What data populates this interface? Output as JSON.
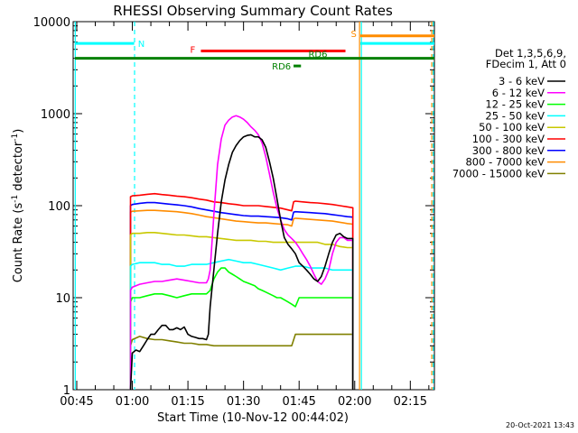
{
  "chart_data": {
    "type": "line",
    "title": "RHESSI Observing Summary Count Rates",
    "xlabel": "Start Time (10-Nov-12 00:44:02)",
    "ylabel_main": "Count Rate (s",
    "ylabel_sup1": "-1",
    "ylabel_mid": " detector",
    "ylabel_sup2": "-1",
    "ylabel_end": ")",
    "x_scale": "time",
    "x_range_min": [
      44.03,
      141.5
    ],
    "y_scale": "log",
    "ylim": [
      1,
      10000
    ],
    "x_ticks": [
      {
        "label": "00:45",
        "m": 45
      },
      {
        "label": "01:00",
        "m": 60
      },
      {
        "label": "01:15",
        "m": 75
      },
      {
        "label": "01:30",
        "m": 90
      },
      {
        "label": "01:45",
        "m": 105
      },
      {
        "label": "02:00",
        "m": 120
      },
      {
        "label": "02:15",
        "m": 135
      }
    ],
    "y_ticks": [
      {
        "label": "1",
        "v": 1
      },
      {
        "label": "10",
        "v": 10
      },
      {
        "label": "100",
        "v": 100
      },
      {
        "label": "1000",
        "v": 1000
      },
      {
        "label": "10000",
        "v": 10000
      }
    ],
    "legend_header": [
      "Det 1,3,5,6,9,",
      "FDecim 1, Att 0"
    ],
    "legend_position": "right",
    "series": [
      {
        "name": "3 - 6 keV",
        "color": "#000000",
        "x": [
          59.5,
          60,
          61,
          62,
          63,
          64,
          65,
          66,
          67,
          68,
          69,
          70,
          71,
          72,
          73,
          74,
          75,
          76,
          77,
          78,
          79,
          80,
          80.5,
          81,
          82,
          83,
          84,
          85,
          86,
          87,
          88,
          89,
          90,
          91,
          92,
          93,
          94,
          95,
          96,
          97,
          98,
          99,
          100,
          101,
          102,
          103,
          104,
          105,
          106,
          107,
          108,
          109,
          110,
          111,
          112,
          113,
          114,
          115,
          116,
          117,
          118,
          119.5
        ],
        "y": [
          1,
          2.5,
          2.7,
          2.6,
          3,
          3.5,
          4,
          4,
          4.5,
          5,
          5,
          4.5,
          4.5,
          4.7,
          4.5,
          4.8,
          4,
          3.8,
          3.7,
          3.6,
          3.6,
          3.5,
          4,
          8,
          20,
          50,
          110,
          190,
          280,
          380,
          450,
          510,
          560,
          580,
          590,
          560,
          560,
          520,
          430,
          300,
          200,
          120,
          70,
          45,
          38,
          34,
          30,
          24,
          22,
          20,
          18,
          16,
          15,
          17,
          22,
          30,
          40,
          48,
          50,
          46,
          44,
          44
        ]
      },
      {
        "name": "6 - 12 keV",
        "color": "#ff00ff",
        "x": [
          59.5,
          60,
          62,
          64,
          66,
          68,
          70,
          72,
          74,
          76,
          78,
          80,
          80.5,
          81,
          82,
          83,
          84,
          85,
          86,
          87,
          88,
          89,
          90,
          91,
          92,
          93,
          94,
          95,
          96,
          97,
          98,
          99,
          100,
          101,
          102,
          103,
          104,
          105,
          106,
          107,
          108,
          109,
          110,
          111,
          112,
          113,
          114,
          115,
          116,
          117,
          118,
          119.5
        ],
        "y": [
          12,
          13,
          14,
          14.5,
          15,
          15,
          15.5,
          16,
          15.5,
          15,
          14.5,
          14.5,
          16,
          20,
          80,
          280,
          530,
          750,
          850,
          920,
          950,
          920,
          870,
          800,
          720,
          660,
          590,
          480,
          340,
          220,
          140,
          95,
          70,
          55,
          48,
          44,
          40,
          35,
          30,
          26,
          22,
          18,
          15,
          14,
          16,
          20,
          30,
          40,
          45,
          45,
          42,
          42
        ]
      },
      {
        "name": "12 - 25 keV",
        "color": "#00ff00",
        "x": [
          59.5,
          60,
          62,
          64,
          66,
          68,
          70,
          72,
          74,
          76,
          78,
          80,
          81,
          82,
          83,
          84,
          85,
          86,
          87,
          88,
          89,
          90,
          91,
          92,
          93,
          94,
          95,
          96,
          97,
          98,
          99,
          100,
          101,
          102,
          103,
          104,
          105,
          106,
          107,
          108,
          109,
          110,
          111,
          112,
          113,
          114,
          115,
          116,
          117,
          118,
          119.5
        ],
        "y": [
          9,
          10,
          10,
          10.5,
          11,
          11,
          10.5,
          10,
          10.5,
          11,
          11,
          11,
          12,
          16,
          19,
          21,
          21,
          19,
          18,
          17,
          16,
          15,
          14.5,
          14,
          13.5,
          12.5,
          12,
          11.5,
          11,
          10.5,
          10,
          10,
          9.5,
          9,
          8.5,
          8,
          10,
          10,
          10,
          10,
          10,
          10,
          10,
          10,
          10,
          10,
          10,
          10,
          10,
          10,
          10
        ]
      },
      {
        "name": "25 - 50 keV",
        "color": "#00ffff",
        "x": [
          59.5,
          60,
          62,
          64,
          66,
          68,
          70,
          72,
          74,
          76,
          78,
          80,
          82,
          84,
          86,
          88,
          90,
          92,
          94,
          96,
          98,
          100,
          102,
          104,
          106,
          108,
          110,
          112,
          114,
          116,
          118,
          119.5
        ],
        "y": [
          22,
          23,
          24,
          24,
          24,
          23,
          23,
          22,
          22,
          23,
          23,
          23,
          24,
          25,
          26,
          25,
          24,
          24,
          23,
          22,
          21,
          20,
          21,
          22,
          22,
          21,
          21,
          21,
          20,
          20,
          20,
          20
        ]
      },
      {
        "name": "50 - 100 keV",
        "color": "#c8c800",
        "x": [
          59.5,
          60,
          62,
          64,
          66,
          68,
          70,
          72,
          74,
          76,
          78,
          80,
          82,
          84,
          86,
          88,
          90,
          92,
          94,
          96,
          98,
          100,
          102,
          103,
          104,
          106,
          108,
          110,
          112,
          114,
          116,
          118,
          119.5
        ],
        "y": [
          48,
          50,
          50,
          51,
          51,
          50,
          49,
          48,
          48,
          47,
          46,
          46,
          45,
          44,
          43,
          42,
          42,
          42,
          41,
          41,
          40,
          40,
          40,
          40,
          40,
          40,
          40,
          40,
          38,
          38,
          36,
          35,
          35
        ]
      },
      {
        "name": "100 - 300 keV",
        "color": "#ff0000",
        "x": [
          59.5,
          60,
          62,
          64,
          66,
          68,
          70,
          72,
          74,
          76,
          78,
          80,
          82,
          84,
          86,
          88,
          90,
          92,
          94,
          96,
          98,
          100,
          102,
          103,
          103.5,
          104,
          106,
          108,
          110,
          112,
          114,
          116,
          118,
          119.5
        ],
        "y": [
          125,
          128,
          130,
          133,
          135,
          132,
          130,
          127,
          125,
          122,
          118,
          115,
          110,
          108,
          105,
          103,
          100,
          100,
          100,
          98,
          96,
          94,
          90,
          88,
          110,
          112,
          110,
          108,
          107,
          105,
          103,
          100,
          97,
          95
        ]
      },
      {
        "name": "300 - 800 keV",
        "color": "#0000ff",
        "x": [
          59.5,
          60,
          62,
          64,
          66,
          68,
          70,
          72,
          74,
          76,
          78,
          80,
          82,
          84,
          86,
          88,
          90,
          92,
          94,
          96,
          98,
          100,
          102,
          103,
          103.5,
          104,
          106,
          108,
          110,
          112,
          114,
          116,
          118,
          119.5
        ],
        "y": [
          100,
          103,
          106,
          108,
          108,
          106,
          104,
          102,
          100,
          97,
          93,
          90,
          87,
          84,
          82,
          80,
          78,
          77,
          77,
          76,
          75,
          74,
          72,
          70,
          85,
          86,
          85,
          84,
          83,
          82,
          80,
          78,
          76,
          75
        ]
      },
      {
        "name": "800 - 7000 keV",
        "color": "#ff8c00",
        "x": [
          59.5,
          60,
          62,
          64,
          66,
          68,
          70,
          72,
          74,
          76,
          78,
          80,
          82,
          84,
          86,
          88,
          90,
          92,
          94,
          96,
          98,
          100,
          102,
          103,
          103.5,
          104,
          106,
          108,
          110,
          112,
          114,
          116,
          118,
          119.5
        ],
        "y": [
          85,
          87,
          88,
          89,
          89,
          88,
          87,
          86,
          84,
          82,
          79,
          76,
          74,
          72,
          70,
          68,
          67,
          66,
          65,
          65,
          64,
          63,
          62,
          60,
          72,
          73,
          72,
          71,
          70,
          69,
          68,
          66,
          64,
          63
        ]
      },
      {
        "name": "7000 - 15000 keV",
        "color": "#808000",
        "x": [
          59.5,
          60,
          62,
          64,
          66,
          68,
          70,
          72,
          74,
          76,
          78,
          80,
          82,
          84,
          86,
          88,
          90,
          92,
          94,
          96,
          98,
          100,
          102,
          103,
          104,
          106,
          108,
          110,
          112,
          114,
          116,
          118,
          119.5
        ],
        "y": [
          3,
          3.5,
          3.8,
          3.6,
          3.5,
          3.5,
          3.4,
          3.3,
          3.2,
          3.2,
          3.1,
          3.1,
          3.0,
          3.0,
          3.0,
          3.0,
          3.0,
          3.0,
          3.0,
          3.0,
          3.0,
          3.0,
          3.0,
          3.0,
          4.0,
          4.0,
          4.0,
          4.0,
          4.0,
          4.0,
          4.0,
          4.0,
          4.0
        ]
      }
    ],
    "flag_bars": [
      {
        "name": "N",
        "label": "N",
        "color": "#00ffff",
        "m_start": 44.5,
        "m_end": 60.5,
        "v": 5800
      },
      {
        "name": "F",
        "label": "F",
        "color": "#ff0000",
        "m_start": 78.5,
        "m_end": 117.5,
        "v": 4800
      },
      {
        "name": "RD",
        "label": "RD6",
        "color": "#008000",
        "m_start": 44.5,
        "m_end": 141.5,
        "v": 4000
      },
      {
        "name": "RD6",
        "label": "RD6",
        "color": "#008000",
        "m_start": 103.5,
        "m_end": 105.5,
        "v": 3300
      },
      {
        "name": "S",
        "label": "S",
        "color": "#ff8c00",
        "m_start": 121.5,
        "m_end": 141.5,
        "v": 7000
      },
      {
        "name": "N2",
        "label": "",
        "color": "#00ffff",
        "m_start": 121.5,
        "m_end": 141.5,
        "v": 5800
      }
    ],
    "vertical_markers": [
      {
        "m": 44.6,
        "color": "#00ffff",
        "style": "solid"
      },
      {
        "m": 60.6,
        "color": "#00ffff",
        "style": "dashed"
      },
      {
        "m": 121.3,
        "color": "#ff8c00",
        "style": "solid"
      },
      {
        "m": 121.8,
        "color": "#00ffff",
        "style": "solid"
      },
      {
        "m": 140.8,
        "color": "#ff8c00",
        "style": "dashed"
      },
      {
        "m": 141.2,
        "color": "#00ffff",
        "style": "dashed"
      }
    ],
    "footer_timestamp": "20-Oct-2021 13:43"
  }
}
